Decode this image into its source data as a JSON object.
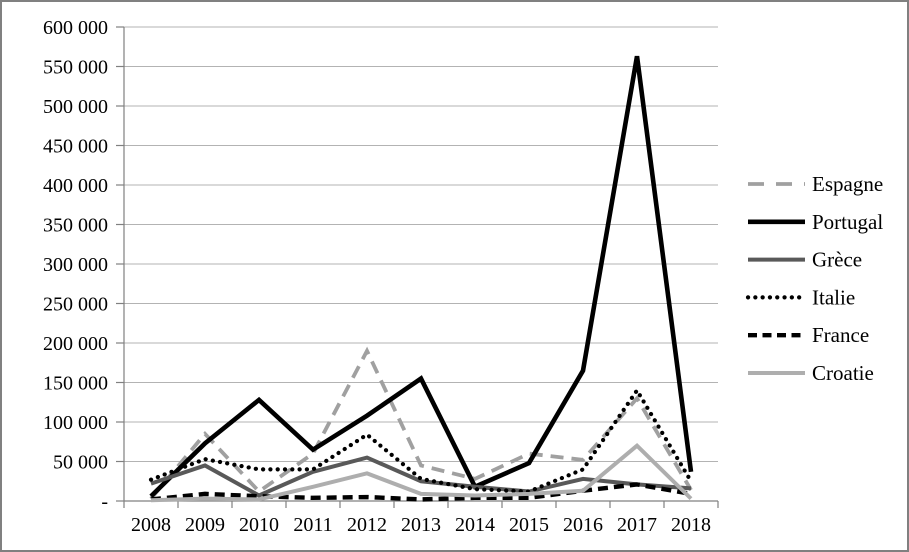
{
  "figure": {
    "background": "#ffffff",
    "border_color": "#808080",
    "grid_color": "#b3b3b3",
    "axis_color": "#808080",
    "text_color": "#000000"
  },
  "chart_data": {
    "type": "line",
    "title": "",
    "xlabel": "",
    "ylabel": "",
    "x": [
      "2008",
      "2009",
      "2010",
      "2011",
      "2012",
      "2013",
      "2014",
      "2015",
      "2016",
      "2017",
      "2018"
    ],
    "series": [
      {
        "name": "Espagne",
        "color": "#a0a0a0",
        "style": "long-dash",
        "width": 3.8,
        "values": [
          3000,
          85000,
          12000,
          60000,
          190000,
          45000,
          28000,
          60000,
          52000,
          130000,
          14000
        ]
      },
      {
        "name": "Portugal",
        "color": "#000000",
        "style": "solid",
        "width": 4.6,
        "values": [
          6000,
          73000,
          128000,
          65000,
          108000,
          155000,
          18000,
          48000,
          165000,
          563000,
          37000
        ]
      },
      {
        "name": "Grèce",
        "color": "#595959",
        "style": "solid",
        "width": 4,
        "values": [
          22000,
          45000,
          7000,
          37000,
          55000,
          25000,
          18000,
          12000,
          28000,
          21000,
          16000
        ]
      },
      {
        "name": "Italie",
        "color": "#000000",
        "style": "dotted",
        "width": 4.2,
        "values": [
          27000,
          53000,
          40000,
          40000,
          84000,
          28000,
          15000,
          12000,
          40000,
          140000,
          25000
        ]
      },
      {
        "name": "France",
        "color": "#000000",
        "style": "short-dash",
        "width": 4.4,
        "values": [
          2000,
          9000,
          6000,
          4000,
          5000,
          2000,
          4000,
          4000,
          13000,
          21000,
          9000
        ]
      },
      {
        "name": "Croatie",
        "color": "#aeaeae",
        "style": "solid",
        "width": 4,
        "values": [
          1000,
          3000,
          2000,
          18000,
          35000,
          9000,
          7000,
          9000,
          13000,
          70000,
          3000
        ]
      }
    ],
    "ylim": [
      0,
      600000
    ],
    "ytick_step": 50000,
    "y_tick_labels_top_down": [
      "600 000",
      "550 000",
      "500 000",
      "450 000",
      "400 000",
      "350 000",
      "300 000",
      "250 000",
      "200 000",
      "150 000",
      "100 000",
      "50 000",
      "-"
    ],
    "grid": "horizontal",
    "legend_position": "right",
    "legend_labels": [
      "Espagne",
      "Portugal",
      "Grèce",
      "Italie",
      "France",
      "Croatie"
    ]
  }
}
